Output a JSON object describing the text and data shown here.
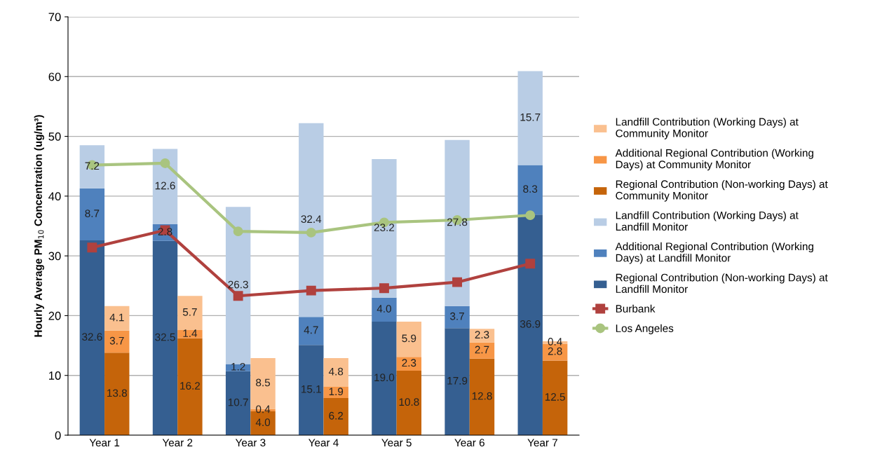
{
  "chart_data": {
    "type": "bar",
    "ylabel": "Hourly Average PM$_{10}$ Concentration (ug/m³)",
    "categories": [
      "Year 1",
      "Year 2",
      "Year 3",
      "Year 4",
      "Year 5",
      "Year 6",
      "Year 7"
    ],
    "series": [
      {
        "name": "Regional Contribution (Non-working Days) at Landfill Monitor",
        "color": "#355f91",
        "base": [
          0,
          0,
          0,
          0,
          0,
          0,
          0
        ],
        "values": [
          32.6,
          32.5,
          10.7,
          15.1,
          19.0,
          17.9,
          36.9
        ],
        "value_labels": [
          "32.6",
          "32.5",
          "10.7",
          "15.1",
          "19.0",
          "17.9",
          "36.9"
        ]
      },
      {
        "name": "Additional Regional Contribution (Working Days) at Landfill Monitor",
        "color": "#4f81bd",
        "base": [
          32.6,
          32.5,
          10.7,
          15.1,
          19.0,
          17.9,
          36.9
        ],
        "values": [
          8.7,
          2.8,
          1.2,
          4.7,
          4.0,
          3.7,
          8.3
        ],
        "value_labels": [
          "8.7",
          "2.8",
          "1.2",
          "4.7",
          "4.0",
          "3.7",
          "8.3"
        ]
      },
      {
        "name": "Landfill Contribution (Working Days) at Landfill Monitor",
        "color": "#b9cde5",
        "base": [
          41.3,
          35.3,
          11.9,
          19.8,
          23.0,
          21.6,
          45.2
        ],
        "values": [
          7.2,
          12.6,
          26.3,
          32.4,
          23.2,
          27.8,
          15.7
        ],
        "value_labels": [
          "7.2",
          "12.6",
          "26.3",
          "32.4",
          "23.2",
          "27.8",
          "15.7"
        ]
      },
      {
        "name": "Regional Contribution (Non-working Days) at Community Monitor",
        "color": "#c5640a",
        "base": [
          0,
          0,
          0,
          0,
          0,
          0,
          0
        ],
        "values": [
          13.8,
          16.2,
          4.0,
          6.2,
          10.8,
          12.8,
          12.5
        ],
        "value_labels": [
          "13.8",
          "16.2",
          "4.0",
          "6.2",
          "10.8",
          "12.8",
          "12.5"
        ]
      },
      {
        "name": "Additional Regional Contribution (Working Days) at Community Monitor",
        "color": "#f79646",
        "base": [
          13.8,
          16.2,
          4.0,
          6.2,
          10.8,
          12.8,
          12.5
        ],
        "values": [
          3.7,
          1.4,
          0.4,
          1.9,
          2.3,
          2.7,
          2.8
        ],
        "value_labels": [
          "3.7",
          "1.4",
          "0.4",
          "1.9",
          "2.3",
          "2.7",
          "2.8"
        ]
      },
      {
        "name": "Landfill Contribution (Working Days) at Community Monitor",
        "color": "#fac08f",
        "base": [
          17.5,
          17.6,
          4.4,
          8.1,
          13.1,
          15.5,
          15.3
        ],
        "values": [
          4.1,
          5.7,
          8.5,
          4.8,
          5.9,
          2.3,
          0.4
        ],
        "value_labels": [
          "4.1",
          "5.7",
          "8.5",
          "4.8",
          "5.9",
          "2.3",
          "0.4"
        ]
      },
      {
        "name": "Burbank",
        "type": "line",
        "marker": "square",
        "color": "#b0413e",
        "values": [
          31.4,
          34.3,
          23.3,
          24.2,
          24.6,
          25.6,
          28.7
        ]
      },
      {
        "name": "Los Angeles",
        "type": "line",
        "marker": "circle",
        "color": "#a9c47f",
        "values": [
          45.2,
          45.5,
          34.1,
          33.9,
          35.6,
          36.0,
          36.8
        ]
      }
    ],
    "ylim": [
      0,
      70
    ],
    "yticks": [
      0,
      10,
      20,
      30,
      40,
      50,
      60,
      70
    ],
    "grid": "y",
    "legend": "right"
  }
}
